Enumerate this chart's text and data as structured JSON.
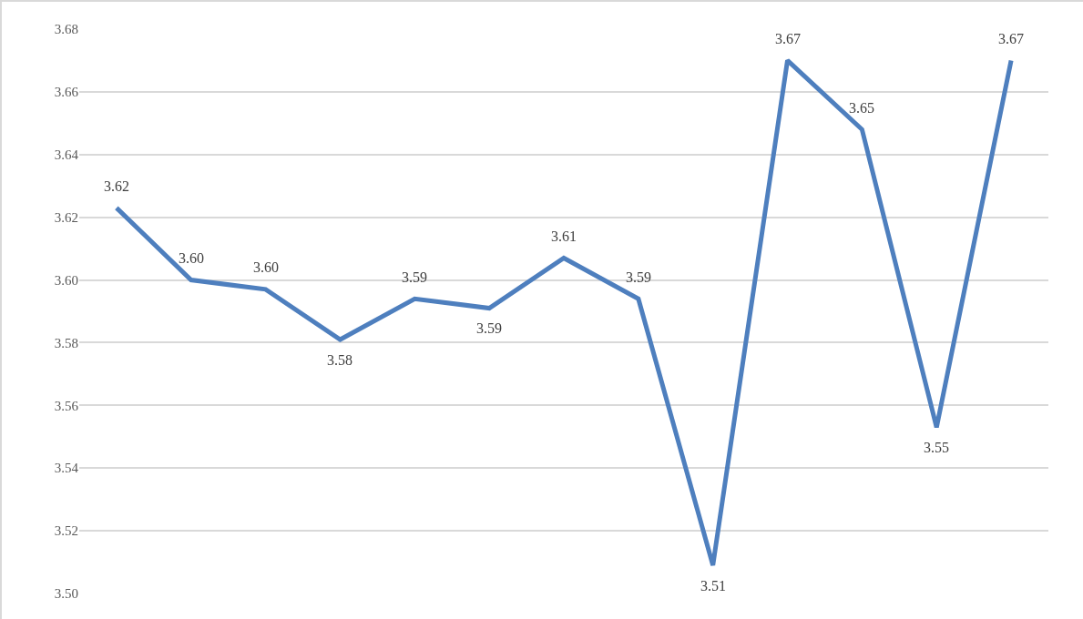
{
  "chart_data": {
    "type": "line",
    "categories": [
      null,
      null,
      null,
      null,
      null,
      null,
      null,
      null,
      null,
      null,
      null,
      null,
      null
    ],
    "series": [
      {
        "color": "#4e7fbe",
        "values": [
          3.623,
          3.6,
          3.597,
          3.581,
          3.594,
          3.591,
          3.607,
          3.594,
          3.509,
          3.67,
          3.648,
          3.553,
          3.67
        ],
        "value_labels": [
          "3.62",
          "3.60",
          "3.60",
          "3.58",
          "3.59",
          "3.59",
          "3.61",
          "3.59",
          "3.51",
          "3.67",
          "3.65",
          "3.55",
          "3.67"
        ]
      }
    ],
    "ylim": [
      3.5,
      3.68
    ],
    "yticks": [
      {
        "value": 3.5,
        "label": "3.50"
      },
      {
        "value": 3.52,
        "label": "3.52"
      },
      {
        "value": 3.54,
        "label": "3.54"
      },
      {
        "value": 3.56,
        "label": "3.56"
      },
      {
        "value": 3.58,
        "label": "3.58"
      },
      {
        "value": 3.6,
        "label": "3.60"
      },
      {
        "value": 3.62,
        "label": "3.62"
      },
      {
        "value": 3.64,
        "label": "3.64"
      },
      {
        "value": 3.66,
        "label": "3.66"
      },
      {
        "value": 3.68,
        "label": "3.68"
      }
    ],
    "grid": "y",
    "tick_labels": "y",
    "marker": "none",
    "line_style": "solid",
    "legend": false
  }
}
